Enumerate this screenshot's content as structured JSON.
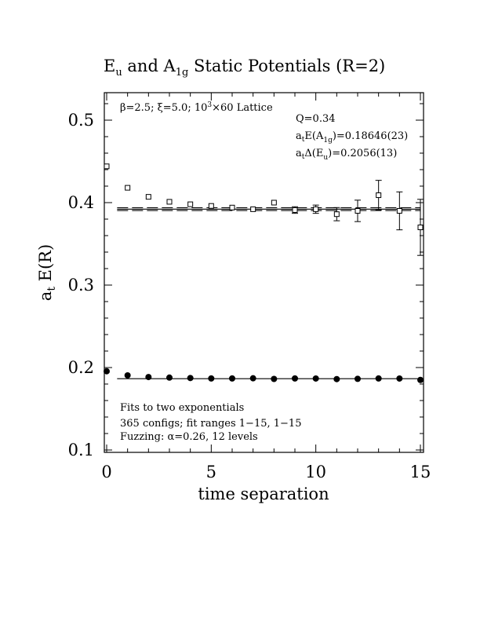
{
  "chart_data": {
    "type": "scatter",
    "title": {
      "p1": "E",
      "s1": "u",
      "p2": " and A",
      "s2": "1g",
      "p3": " Static Potentials (R=2)"
    },
    "xlabel": "time separation",
    "ylabel": {
      "p1": "a",
      "s1": "t",
      "p2": " E(R)"
    },
    "xlim": [
      0,
      15
    ],
    "ylim": [
      0.1,
      0.53
    ],
    "xticks": [
      "0",
      "5",
      "10",
      "15"
    ],
    "yticks": [
      "0.1",
      "0.2",
      "0.3",
      "0.4",
      "0.5"
    ],
    "series": [
      {
        "marker": "open-square",
        "points": [
          {
            "x": 0,
            "y": 0.444,
            "err": 0.002
          },
          {
            "x": 1,
            "y": 0.418,
            "err": 0.002
          },
          {
            "x": 2,
            "y": 0.407,
            "err": 0.002
          },
          {
            "x": 3,
            "y": 0.401,
            "err": 0.002
          },
          {
            "x": 4,
            "y": 0.398,
            "err": 0.002
          },
          {
            "x": 5,
            "y": 0.396,
            "err": 0.002
          },
          {
            "x": 6,
            "y": 0.394,
            "err": 0.002
          },
          {
            "x": 7,
            "y": 0.392,
            "err": 0.002
          },
          {
            "x": 8,
            "y": 0.4,
            "err": 0.003
          },
          {
            "x": 9,
            "y": 0.391,
            "err": 0.004
          },
          {
            "x": 10,
            "y": 0.392,
            "err": 0.005
          },
          {
            "x": 11,
            "y": 0.386,
            "err": 0.008
          },
          {
            "x": 12,
            "y": 0.39,
            "err": 0.013
          },
          {
            "x": 13,
            "y": 0.409,
            "err": 0.018
          },
          {
            "x": 14,
            "y": 0.39,
            "err": 0.023
          },
          {
            "x": 15,
            "y": 0.37,
            "err": 0.034
          }
        ],
        "fit_value": 0.3921,
        "fit_band": 0.0017,
        "fit_range": [
          0.5,
          15
        ]
      },
      {
        "marker": "filled-circle",
        "points": [
          {
            "x": 0,
            "y": 0.1955
          },
          {
            "x": 1,
            "y": 0.1905
          },
          {
            "x": 2,
            "y": 0.1885
          },
          {
            "x": 3,
            "y": 0.1878
          },
          {
            "x": 4,
            "y": 0.1873
          },
          {
            "x": 5,
            "y": 0.1868
          },
          {
            "x": 6,
            "y": 0.1868
          },
          {
            "x": 7,
            "y": 0.187
          },
          {
            "x": 8,
            "y": 0.1862
          },
          {
            "x": 9,
            "y": 0.1868
          },
          {
            "x": 10,
            "y": 0.1867
          },
          {
            "x": 11,
            "y": 0.186
          },
          {
            "x": 12,
            "y": 0.1863
          },
          {
            "x": 13,
            "y": 0.1868
          },
          {
            "x": 14,
            "y": 0.1867
          },
          {
            "x": 15,
            "y": 0.185
          }
        ],
        "fit_value": 0.18646,
        "fit_range": [
          0.5,
          15
        ]
      }
    ],
    "annotations": {
      "lattice": {
        "p1": "β=2.5; ξ=5.0; 10",
        "s1": "3",
        "p2": "×60 Lattice"
      },
      "q": "Q=0.34",
      "energy": {
        "p1": "a",
        "s1": "t",
        "p2": "E(A",
        "s2": "1g",
        "p3": ")=0.18646(23)"
      },
      "gap": {
        "p1": "a",
        "s1": "t",
        "p2": "Δ(E",
        "s2": "u",
        "p3": ")=0.2056(13)"
      },
      "fits": "Fits to two exponentials",
      "configs": "365 configs; fit ranges 1−15, 1−15",
      "fuzzing": "Fuzzing: α=0.26, 12 levels"
    }
  }
}
